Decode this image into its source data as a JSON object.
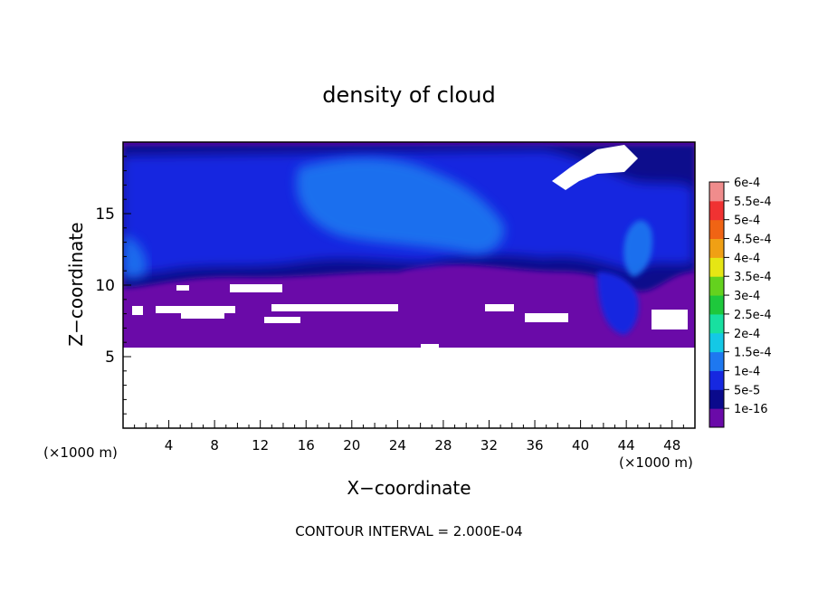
{
  "chart_data": {
    "type": "heatmap",
    "title": "density of cloud",
    "xlabel": "X−coordinate",
    "ylabel": "Z−coordinate",
    "x_unit_left": "(×1000 m)",
    "x_unit_right": "(×1000 m)",
    "xlim": [
      0,
      50
    ],
    "ylim": [
      0,
      20
    ],
    "x_ticks": [
      4,
      8,
      12,
      16,
      20,
      24,
      28,
      32,
      36,
      40,
      44,
      48
    ],
    "x_tick_labels": [
      "4",
      "8",
      "12",
      "16",
      "20",
      "24",
      "28",
      "32",
      "36",
      "40",
      "44",
      "48"
    ],
    "y_ticks": [
      5,
      10,
      15
    ],
    "y_tick_labels": [
      "5",
      "10",
      "15"
    ],
    "legend_position": "right",
    "colorbar": [
      {
        "label": "1e-16",
        "color": "#6a0aa8"
      },
      {
        "label": "5e-5",
        "color": "#0a0a8c"
      },
      {
        "label": "1e-4",
        "color": "#1628e0"
      },
      {
        "label": "1.5e-4",
        "color": "#1e78f0"
      },
      {
        "label": "2e-4",
        "color": "#14c8e6"
      },
      {
        "label": "2.5e-4",
        "color": "#18e0a0"
      },
      {
        "label": "3e-4",
        "color": "#1ec83c"
      },
      {
        "label": "3.5e-4",
        "color": "#64d21e"
      },
      {
        "label": "4e-4",
        "color": "#e6e614"
      },
      {
        "label": "4.5e-4",
        "color": "#f0a014"
      },
      {
        "label": "5e-4",
        "color": "#f06414"
      },
      {
        "label": "5.5e-4",
        "color": "#f03232"
      },
      {
        "label": "6e-4",
        "color": "#f08c8c"
      }
    ],
    "footnote": "CONTOUR INTERVAL = 2.000E-04"
  }
}
